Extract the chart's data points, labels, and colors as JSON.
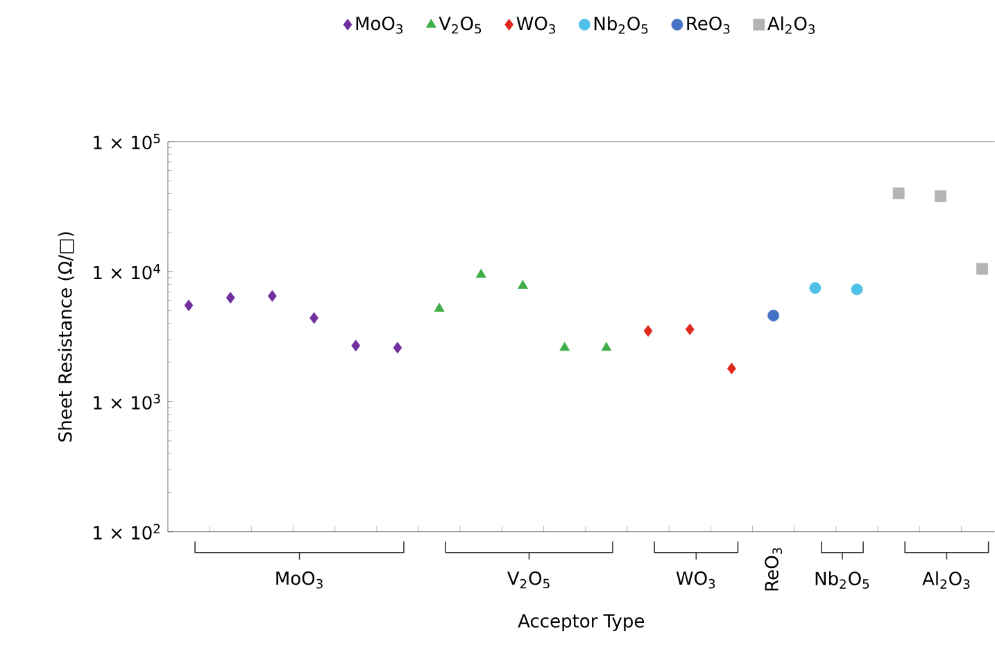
{
  "chart_data": {
    "type": "scatter",
    "xlabel": "Acceptor Type",
    "ylabel": "Sheet Resistance (Ω/□)",
    "log": "y",
    "legend": "top",
    "categories": [
      null,
      null,
      null,
      null,
      null,
      null,
      null,
      null,
      null,
      null,
      null,
      null,
      null,
      null,
      null,
      null,
      null,
      null,
      null,
      null
    ],
    "ylim": [
      100,
      100000
    ],
    "yticks": [
      {
        "value": 100,
        "label": "1 × 10$^{2}$"
      },
      {
        "value": 1000,
        "label": "1 × 10$^{3}$"
      },
      {
        "value": 10000,
        "label": "1 × 10$^{4}$"
      },
      {
        "value": 100000,
        "label": "1 × 10$^{5}$"
      }
    ],
    "series": [
      {
        "name": "MoO$_{3}$",
        "color": "#7030a0",
        "marker": "diamond",
        "values": [
          5500,
          6300,
          6500,
          4400,
          2700,
          2600,
          null,
          null,
          null,
          null,
          null,
          null,
          null,
          null,
          null,
          null,
          null,
          null,
          null,
          null
        ]
      },
      {
        "name": "V$_{2}$O$_{5}$",
        "color": "#3fae49",
        "marker": "triangle",
        "values": [
          null,
          null,
          null,
          null,
          null,
          null,
          5200,
          9500,
          7800,
          2600,
          2600,
          null,
          null,
          null,
          null,
          null,
          null,
          null,
          null,
          null
        ]
      },
      {
        "name": "WO$_{3}$",
        "color": "#e0281e",
        "marker": "diamond",
        "values": [
          null,
          null,
          null,
          null,
          null,
          null,
          null,
          null,
          null,
          null,
          null,
          3500,
          3600,
          1800,
          null,
          null,
          null,
          null,
          null,
          null
        ]
      },
      {
        "name": "Nb$_{2}$O$_{5}$",
        "color": "#4fc0e8",
        "marker": "circle",
        "values": [
          null,
          null,
          null,
          null,
          null,
          null,
          null,
          null,
          null,
          null,
          null,
          null,
          null,
          null,
          null,
          7500,
          7300,
          null,
          null,
          null
        ]
      },
      {
        "name": "ReO$_{3}$",
        "color": "#4472c4",
        "marker": "circle",
        "values": [
          null,
          null,
          null,
          null,
          null,
          null,
          null,
          null,
          null,
          null,
          null,
          null,
          null,
          null,
          4600,
          null,
          null,
          null,
          null,
          null
        ]
      },
      {
        "name": "Al$_{2}$O$_{3}$",
        "color": "#b4b4b4",
        "marker": "square",
        "values": [
          null,
          null,
          null,
          null,
          null,
          null,
          null,
          null,
          null,
          null,
          null,
          null,
          null,
          null,
          null,
          null,
          null,
          40000,
          38000,
          10500
        ]
      }
    ],
    "annotations": [
      "MoO$_{3}$",
      "V$_{2}$O$_{5}$",
      "WO$_{3}$",
      "ReO$_{3}$",
      "Nb$_{2}$O$_{5}$",
      "Al$_{2}$O$_{3}$"
    ]
  }
}
